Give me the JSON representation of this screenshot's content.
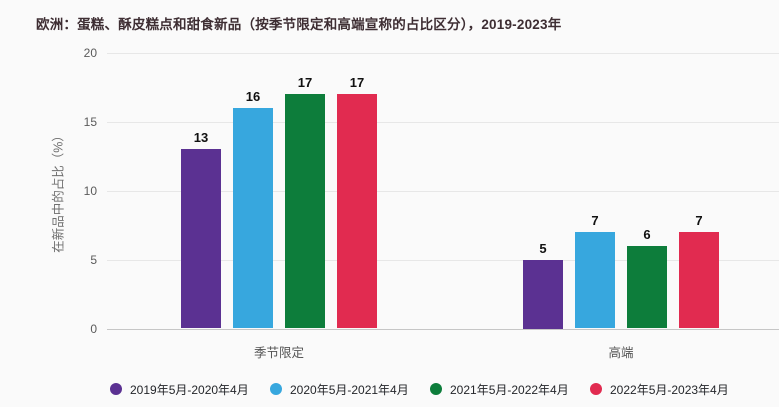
{
  "page": {
    "background": "#fafafa"
  },
  "chart_data": {
    "type": "bar",
    "title": "欧洲：蛋糕、酥皮糕点和甜食新品（按季节限定和高端宣称的占比区分），2019-2023年",
    "ylabel": "在新品中的占比（%）",
    "categories": [
      "季节限定",
      "高端"
    ],
    "series": [
      {
        "name": "2019年5月-2020年4月",
        "color": "#5b3192",
        "values": [
          13,
          5
        ]
      },
      {
        "name": "2020年5月-2021年4月",
        "color": "#37a7de",
        "values": [
          16,
          7
        ]
      },
      {
        "name": "2021年5月-2022年4月",
        "color": "#0d7d3b",
        "values": [
          17,
          6
        ]
      },
      {
        "name": "2022年5月-2023年4月",
        "color": "#e12b50",
        "values": [
          17,
          7
        ]
      }
    ],
    "ylim": [
      0,
      20
    ],
    "yticks": [
      0,
      5,
      10,
      15,
      20
    ],
    "grid": true,
    "legend_position": "bottom",
    "value_labels": true
  }
}
